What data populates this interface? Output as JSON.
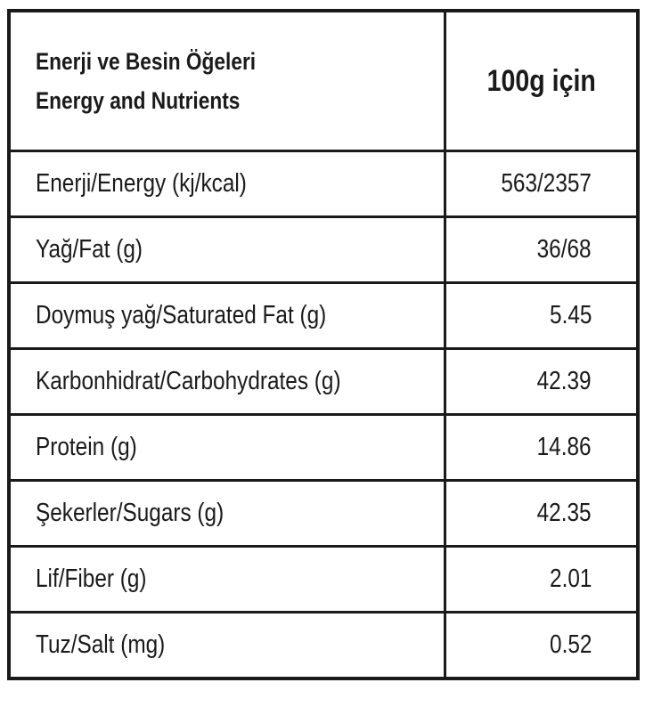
{
  "header": {
    "title": [
      "Enerji ve Besin Öğeleri",
      "Energy and Nutrients"
    ],
    "column": "100g için"
  },
  "table": {
    "rows": [
      [
        "Enerji/Energy (kj/kcal)",
        "563/2357"
      ],
      [
        "Yağ/Fat (g)",
        "36/68"
      ],
      [
        "Doymuş yağ/Saturated Fat (g)",
        "5.45"
      ],
      [
        "Karbonhidrat/Carbohydrates (g)",
        "42.39"
      ],
      [
        "Protein (g)",
        "14.86"
      ],
      [
        "Şekerler/Sugars (g)",
        "42.35"
      ],
      [
        "Lif/Fiber (g)",
        "2.01"
      ],
      [
        "Tuz/Salt (mg)",
        "0.52"
      ]
    ]
  }
}
